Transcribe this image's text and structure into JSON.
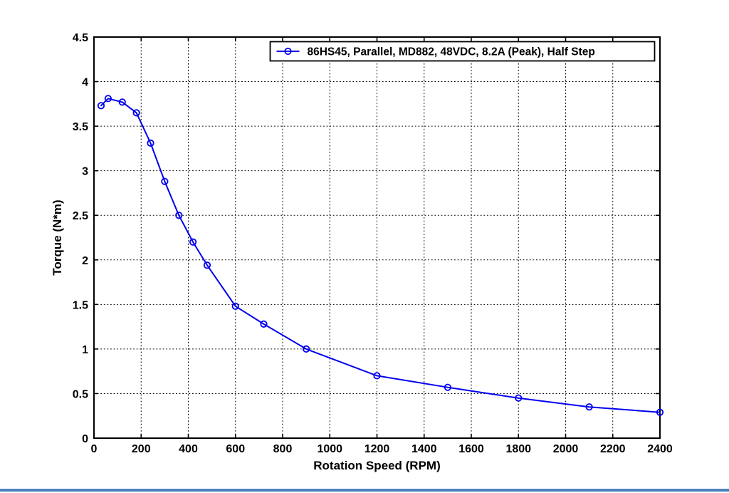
{
  "figure": {
    "background": "#ffffff",
    "accent_bar_color": "#4a82be"
  },
  "chart_data": {
    "type": "line",
    "title": "",
    "xlabel": "Rotation Speed (RPM)",
    "ylabel": "Torque (N*m)",
    "xlim": [
      0,
      2400
    ],
    "ylim": [
      0,
      4.5
    ],
    "x_ticks": [
      0,
      200,
      400,
      600,
      800,
      1000,
      1200,
      1400,
      1600,
      1800,
      2000,
      2200,
      2400
    ],
    "x_tick_labels": [
      "0",
      "200",
      "400",
      "600",
      "800",
      "1000",
      "1200",
      "1400",
      "1600",
      "1800",
      "2000",
      "2200",
      "2400"
    ],
    "y_ticks": [
      0,
      0.5,
      1,
      1.5,
      2,
      2.5,
      3,
      3.5,
      4,
      4.5
    ],
    "y_tick_labels": [
      "0",
      "0.5",
      "1",
      "1.5",
      "2",
      "2.5",
      "3",
      "3.5",
      "4",
      "4.5"
    ],
    "grid": "dotted",
    "grid_color": "#000000",
    "axis_color": "#000000",
    "legend": {
      "position": "top-right-inside",
      "border_color": "#000000",
      "background": "#ffffff"
    },
    "series": [
      {
        "name": "86HS45, Parallel, MD882, 48VDC, 8.2A (Peak), Half Step",
        "color": "#0000ee",
        "marker": "open-circle",
        "line_width": 2,
        "x": [
          30,
          60,
          120,
          180,
          240,
          300,
          360,
          420,
          480,
          600,
          720,
          900,
          1200,
          1500,
          1800,
          2100,
          2400
        ],
        "y": [
          3.73,
          3.81,
          3.77,
          3.65,
          3.31,
          2.88,
          2.5,
          2.2,
          1.94,
          1.48,
          1.28,
          1.0,
          0.7,
          0.57,
          0.45,
          0.35,
          0.29
        ]
      }
    ]
  }
}
